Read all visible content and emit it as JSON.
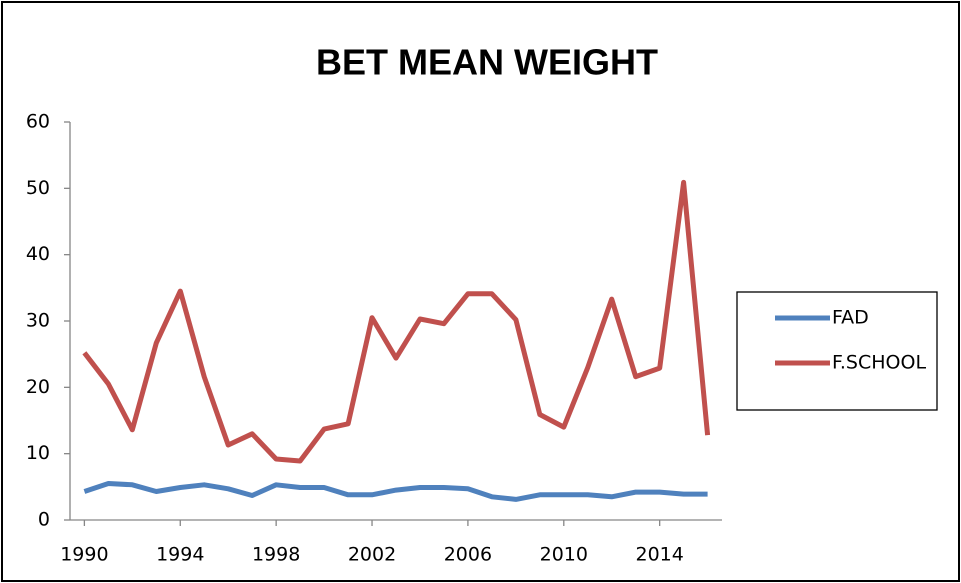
{
  "chart_data": {
    "type": "line",
    "title": "BET MEAN WEIGHT",
    "x": [
      1990,
      1991,
      1992,
      1993,
      1994,
      1995,
      1996,
      1997,
      1998,
      1999,
      2000,
      2001,
      2002,
      2003,
      2004,
      2005,
      2006,
      2007,
      2008,
      2009,
      2010,
      2011,
      2012,
      2013,
      2014,
      2015,
      2016
    ],
    "series": [
      {
        "name": "FAD",
        "color": "#4f81bd",
        "values": [
          4.3,
          5.5,
          5.3,
          4.3,
          4.9,
          5.3,
          4.7,
          3.7,
          5.3,
          4.9,
          4.9,
          3.8,
          3.8,
          4.5,
          4.9,
          4.9,
          4.7,
          3.5,
          3.1,
          3.8,
          3.8,
          3.8,
          3.5,
          4.2,
          4.2,
          3.9,
          3.9
        ]
      },
      {
        "name": "F.SCHOOL",
        "color": "#c0504d",
        "values": [
          25.2,
          20.5,
          13.6,
          26.7,
          34.5,
          21.6,
          11.3,
          13,
          9.2,
          8.9,
          13.7,
          14.5,
          30.5,
          24.4,
          30.3,
          29.6,
          34.1,
          34.1,
          30.2,
          15.9,
          14,
          23,
          33.3,
          21.6,
          22.9,
          50.9,
          12.8
        ]
      }
    ],
    "xlim": [
      1989.4,
      2016.6
    ],
    "xticks": [
      1990,
      1994,
      1998,
      2002,
      2006,
      2010,
      2014
    ],
    "ylim": [
      0,
      60
    ],
    "yticks": [
      0,
      10,
      20,
      30,
      40,
      50,
      60
    ],
    "grid": false,
    "legend": "right"
  }
}
